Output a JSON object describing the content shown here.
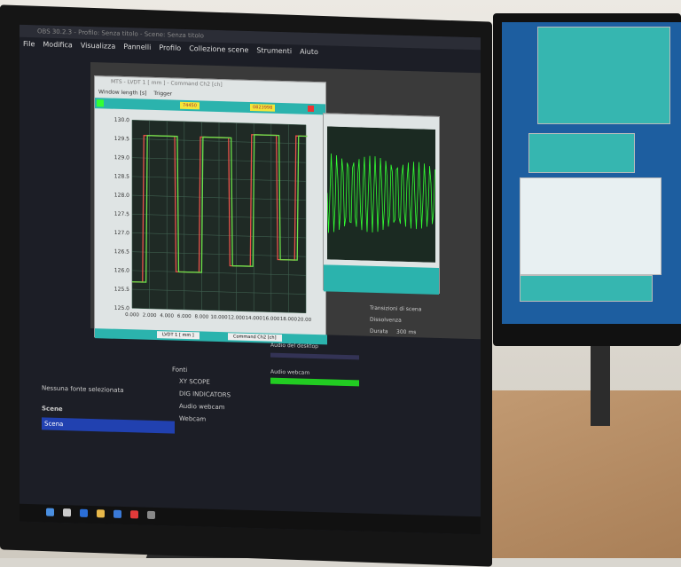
{
  "obs": {
    "title": "OBS 30.2.3 - Profilo: Senza titolo - Scene: Senza titolo",
    "menu": [
      "File",
      "Modifica",
      "Visualizza",
      "Pannelli",
      "Profilo",
      "Collezione scene",
      "Strumenti",
      "Aiuto"
    ],
    "no_source": "Nessuna fonte selezionata",
    "scenes_header": "Scene",
    "scenes": [
      "Scena"
    ],
    "sources_header": "Fonti",
    "sources": [
      "XY SCOPE",
      "DIG INDICATORS",
      "Audio webcam",
      "Webcam"
    ],
    "mixer": [
      "Audio del desktop",
      "Audio webcam"
    ],
    "transitions": {
      "header": "Transizioni di scena",
      "type": "Dissolvenza",
      "duration_label": "Durata",
      "duration": "300 ms"
    }
  },
  "plot_window": {
    "title": "MTS - LVDT 1 [ mm ] - Command Ch2 [ch]",
    "menu": [
      "Window length [s]",
      "Trigger"
    ],
    "tags": [
      "74450",
      "0823998"
    ],
    "legend": [
      "LVDT 1 [ mm ]",
      "Command Ch2 [ch]"
    ],
    "colors": {
      "feedback": "#6be04a",
      "command": "#e8524a",
      "grid": "#3f5f4f",
      "bg": "#1f2a25"
    }
  },
  "chart_data": {
    "type": "line",
    "xlim": [
      0,
      20
    ],
    "ylim": [
      125,
      130
    ],
    "x_ticks": [
      "0.000",
      "2.000",
      "4.000",
      "6.000",
      "8.000",
      "10.000",
      "12.000",
      "14.000",
      "16.000",
      "18.000",
      "20.000"
    ],
    "y_ticks": [
      "125.0",
      "125.5",
      "126.0",
      "126.5",
      "127.0",
      "127.5",
      "128.0",
      "128.5",
      "129.0",
      "129.5",
      "130.0"
    ],
    "grid": true,
    "series": [
      {
        "name": "Command Ch2 [ch]",
        "color": "#e8524a",
        "steps": [
          [
            0,
            125.7
          ],
          [
            1.2,
            129.6
          ],
          [
            4.9,
            126.0
          ],
          [
            7.7,
            129.6
          ],
          [
            11.1,
            126.2
          ],
          [
            13.6,
            129.7
          ],
          [
            16.6,
            126.4
          ],
          [
            18.7,
            129.7
          ],
          [
            20,
            129.7
          ]
        ]
      },
      {
        "name": "LVDT 1 [ mm ]",
        "color": "#6be04a",
        "steps": [
          [
            0,
            125.7
          ],
          [
            1.6,
            129.6
          ],
          [
            5.2,
            126.0
          ],
          [
            8.0,
            129.6
          ],
          [
            11.4,
            126.2
          ],
          [
            13.9,
            129.7
          ],
          [
            16.9,
            126.4
          ],
          [
            19.0,
            129.7
          ],
          [
            20,
            129.7
          ]
        ]
      }
    ]
  },
  "taskbar_icons": [
    "#4a8fe0",
    "#ccc",
    "#2b6fd8",
    "#e8b84a",
    "#3a7ad8",
    "#e23a3a",
    "#888"
  ]
}
